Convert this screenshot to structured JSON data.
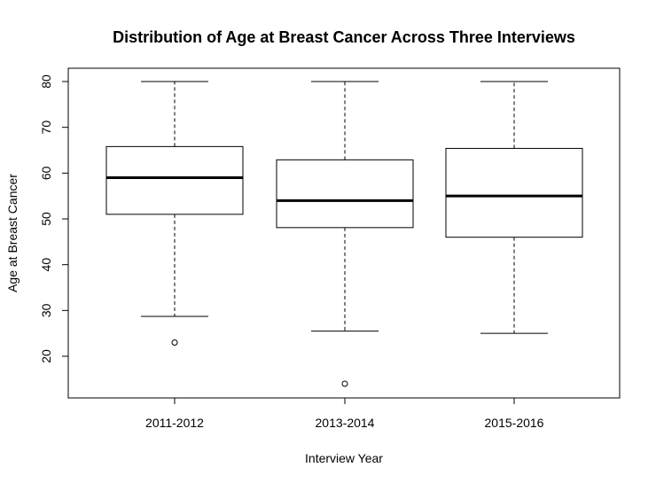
{
  "chart_data": {
    "type": "boxplot",
    "title": "Distribution of Age at Breast Cancer Across Three Interviews",
    "xlabel": "Interview Year",
    "ylabel": "Age at Breast Cancer",
    "ylim": [
      11,
      82
    ],
    "yticks": [
      20,
      30,
      40,
      50,
      60,
      70,
      80
    ],
    "ytick_labels": [
      "20",
      "30",
      "40",
      "50",
      "60",
      "70",
      "80"
    ],
    "categories": [
      "2011-2012",
      "2013-2014",
      "2015-2016"
    ],
    "boxes": [
      {
        "category": "2011-2012",
        "whisker_low": 28.7,
        "q1": 51,
        "median": 59,
        "q3": 65.8,
        "whisker_high": 80,
        "outliers": [
          23
        ]
      },
      {
        "category": "2013-2014",
        "whisker_low": 25.5,
        "q1": 48.1,
        "median": 54,
        "q3": 62.9,
        "whisker_high": 80,
        "outliers": [
          14
        ]
      },
      {
        "category": "2015-2016",
        "whisker_low": 25,
        "q1": 46,
        "median": 55,
        "q3": 65.4,
        "whisker_high": 80,
        "outliers": []
      }
    ],
    "grid": false,
    "legend": "none"
  }
}
